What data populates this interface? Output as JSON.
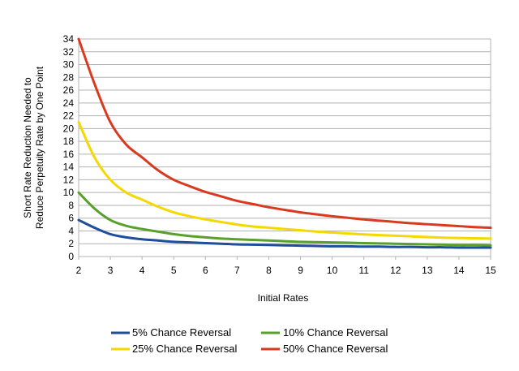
{
  "chart_data": {
    "type": "line",
    "title": "",
    "xlabel": "Initial Rates",
    "ylabel_lines": [
      "Short Rate Reduction Needed to",
      "Reduce Perpetuity Rate by One Point"
    ],
    "xlim": [
      2,
      15
    ],
    "ylim": [
      0,
      34
    ],
    "x_ticks": [
      2,
      3,
      4,
      5,
      6,
      7,
      8,
      9,
      10,
      11,
      12,
      13,
      14,
      15
    ],
    "y_ticks": [
      0,
      2,
      4,
      6,
      8,
      10,
      12,
      14,
      16,
      18,
      20,
      22,
      24,
      26,
      28,
      30,
      32,
      34
    ],
    "grid": "horizontal",
    "legend_position": "bottom",
    "x": [
      2,
      2.5,
      3,
      3.5,
      4,
      4.5,
      5,
      5.5,
      6,
      6.5,
      7,
      7.5,
      8,
      8.5,
      9,
      9.5,
      10,
      10.5,
      11,
      11.5,
      12,
      12.5,
      13,
      13.5,
      14,
      14.5,
      15
    ],
    "series": [
      {
        "name": "5% Chance Reversal",
        "color": "#1f4e9a",
        "values": [
          5.7,
          4.5,
          3.5,
          3.0,
          2.7,
          2.5,
          2.3,
          2.2,
          2.1,
          2.0,
          1.9,
          1.85,
          1.8,
          1.75,
          1.7,
          1.65,
          1.6,
          1.6,
          1.55,
          1.55,
          1.5,
          1.5,
          1.45,
          1.45,
          1.4,
          1.4,
          1.4
        ]
      },
      {
        "name": "10% Chance Reversal",
        "color": "#5aa02c",
        "values": [
          10.0,
          7.5,
          5.7,
          4.8,
          4.3,
          3.9,
          3.5,
          3.2,
          3.0,
          2.8,
          2.7,
          2.6,
          2.5,
          2.4,
          2.3,
          2.25,
          2.2,
          2.15,
          2.1,
          2.05,
          2.0,
          1.95,
          1.9,
          1.85,
          1.8,
          1.8,
          1.75
        ]
      },
      {
        "name": "25% Chance Reversal",
        "color": "#f5d800",
        "values": [
          21.0,
          15.5,
          12.0,
          10.0,
          8.9,
          7.8,
          6.9,
          6.3,
          5.8,
          5.4,
          5.0,
          4.7,
          4.5,
          4.3,
          4.1,
          3.9,
          3.75,
          3.6,
          3.45,
          3.35,
          3.25,
          3.15,
          3.05,
          2.95,
          2.9,
          2.85,
          2.8
        ]
      },
      {
        "name": "50% Chance Reversal",
        "color": "#d93a1e",
        "values": [
          34.0,
          27.0,
          21.0,
          17.5,
          15.5,
          13.5,
          12.0,
          11.0,
          10.1,
          9.4,
          8.7,
          8.2,
          7.7,
          7.3,
          6.9,
          6.6,
          6.3,
          6.05,
          5.8,
          5.6,
          5.4,
          5.2,
          5.05,
          4.9,
          4.75,
          4.6,
          4.5
        ]
      }
    ]
  }
}
